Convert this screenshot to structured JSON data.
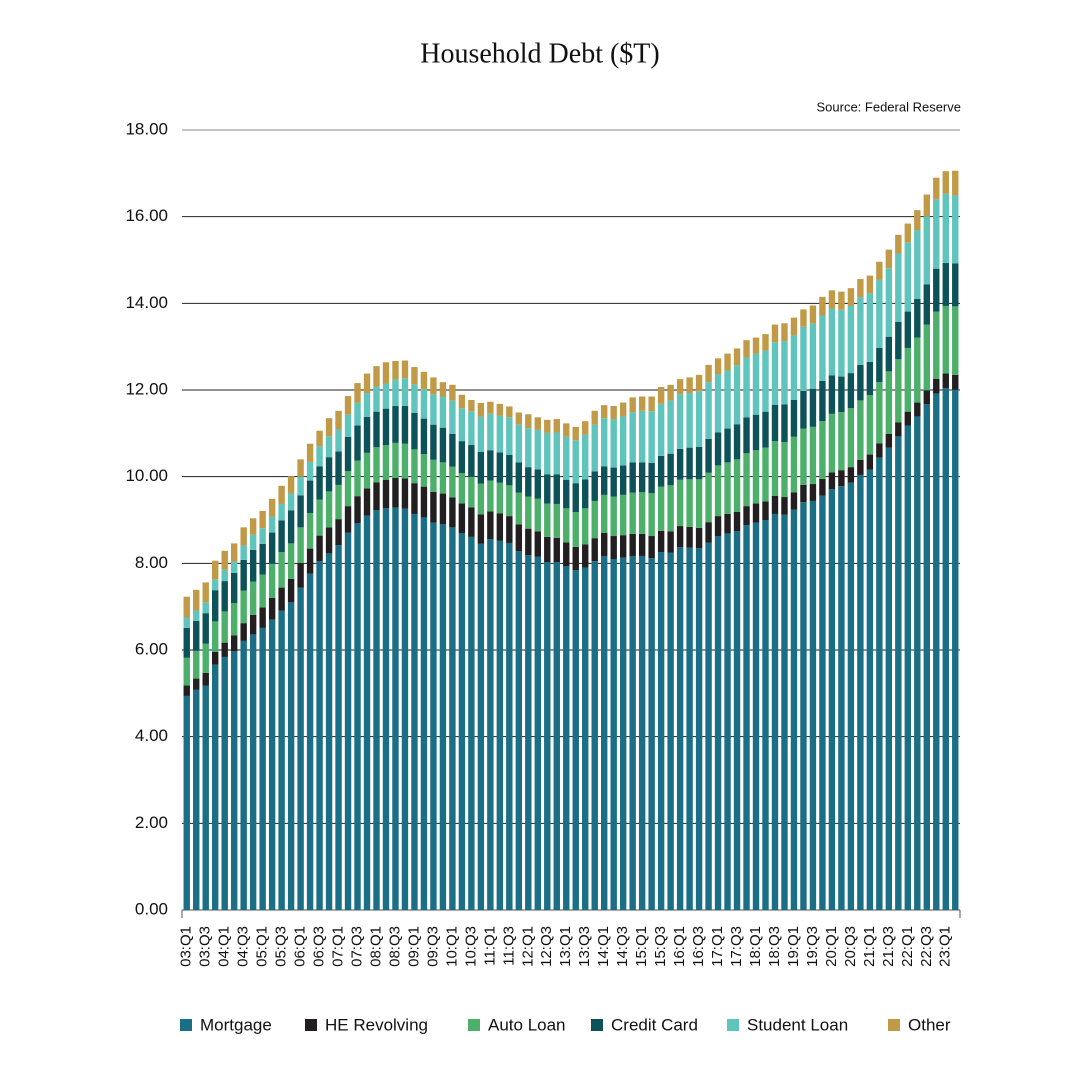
{
  "chart_data": {
    "type": "stacked-bar",
    "title": "Household Debt ($T)",
    "source": "Source: Federal Reserve",
    "categories": [
      "03:Q1",
      null,
      "03:Q3",
      null,
      "04:Q1",
      null,
      "04:Q3",
      null,
      "05:Q1",
      null,
      "05:Q3",
      null,
      "06:Q1",
      null,
      "06:Q3",
      null,
      "07:Q1",
      null,
      "07:Q3",
      null,
      "08:Q1",
      null,
      "08:Q3",
      null,
      "09:Q1",
      null,
      "09:Q3",
      null,
      "10:Q1",
      null,
      "10:Q3",
      null,
      "11:Q1",
      null,
      "11:Q3",
      null,
      "12:Q1",
      null,
      "12:Q3",
      null,
      "13:Q1",
      null,
      "13:Q3",
      null,
      "14:Q1",
      null,
      "14:Q3",
      null,
      "15:Q1",
      null,
      "15:Q3",
      null,
      "16:Q1",
      null,
      "16:Q3",
      null,
      "17:Q1",
      null,
      "17:Q3",
      null,
      "18:Q1",
      null,
      "18:Q3",
      null,
      "19:Q1",
      null,
      "19:Q3",
      null,
      "20:Q1",
      null,
      "20:Q3",
      null,
      "21:Q1",
      null,
      "21:Q3",
      null,
      "22:Q1",
      null,
      "22:Q3",
      null,
      "23:Q1",
      null
    ],
    "series": [
      {
        "name": "Mortgage",
        "color": "#1a6e85",
        "values": [
          4.94,
          5.08,
          5.18,
          5.66,
          5.84,
          5.97,
          6.21,
          6.36,
          6.51,
          6.7,
          6.91,
          7.1,
          7.44,
          7.76,
          8.05,
          8.23,
          8.42,
          8.71,
          8.93,
          9.1,
          9.23,
          9.27,
          9.29,
          9.26,
          9.14,
          9.06,
          8.94,
          8.9,
          8.83,
          8.7,
          8.61,
          8.45,
          8.56,
          8.52,
          8.47,
          8.28,
          8.19,
          8.15,
          8.03,
          8.03,
          7.93,
          7.84,
          7.9,
          8.05,
          8.17,
          8.1,
          8.13,
          8.17,
          8.17,
          8.12,
          8.26,
          8.25,
          8.37,
          8.36,
          8.35,
          8.48,
          8.63,
          8.69,
          8.74,
          8.88,
          8.94,
          9.0,
          9.14,
          9.12,
          9.24,
          9.41,
          9.44,
          9.56,
          9.71,
          9.78,
          9.86,
          10.04,
          10.16,
          10.44,
          10.67,
          10.93,
          11.18,
          11.39,
          11.67,
          11.92,
          12.04,
          12.01
        ]
      },
      {
        "name": "HE Revolving",
        "color": "#231f20",
        "values": [
          0.24,
          0.26,
          0.29,
          0.3,
          0.33,
          0.37,
          0.41,
          0.45,
          0.47,
          0.5,
          0.53,
          0.54,
          0.57,
          0.58,
          0.59,
          0.6,
          0.6,
          0.61,
          0.62,
          0.63,
          0.64,
          0.66,
          0.68,
          0.7,
          0.71,
          0.71,
          0.71,
          0.71,
          0.69,
          0.68,
          0.68,
          0.68,
          0.64,
          0.63,
          0.62,
          0.62,
          0.61,
          0.59,
          0.58,
          0.56,
          0.55,
          0.54,
          0.54,
          0.53,
          0.53,
          0.53,
          0.52,
          0.51,
          0.51,
          0.51,
          0.49,
          0.49,
          0.49,
          0.48,
          0.47,
          0.47,
          0.46,
          0.45,
          0.45,
          0.44,
          0.44,
          0.43,
          0.42,
          0.41,
          0.4,
          0.4,
          0.39,
          0.39,
          0.39,
          0.37,
          0.36,
          0.35,
          0.35,
          0.33,
          0.32,
          0.32,
          0.32,
          0.32,
          0.32,
          0.34,
          0.34,
          0.34
        ]
      },
      {
        "name": "Auto Loan",
        "color": "#4caf6a",
        "values": [
          0.64,
          0.64,
          0.68,
          0.7,
          0.72,
          0.74,
          0.75,
          0.77,
          0.76,
          0.79,
          0.82,
          0.82,
          0.82,
          0.82,
          0.83,
          0.83,
          0.79,
          0.81,
          0.82,
          0.82,
          0.81,
          0.8,
          0.81,
          0.8,
          0.78,
          0.75,
          0.74,
          0.72,
          0.71,
          0.7,
          0.71,
          0.71,
          0.71,
          0.71,
          0.71,
          0.73,
          0.74,
          0.75,
          0.77,
          0.78,
          0.79,
          0.8,
          0.83,
          0.86,
          0.88,
          0.91,
          0.93,
          0.95,
          0.96,
          0.99,
          1.02,
          1.06,
          1.07,
          1.1,
          1.12,
          1.14,
          1.17,
          1.19,
          1.21,
          1.22,
          1.23,
          1.24,
          1.26,
          1.27,
          1.28,
          1.3,
          1.32,
          1.33,
          1.35,
          1.34,
          1.36,
          1.37,
          1.37,
          1.41,
          1.44,
          1.46,
          1.47,
          1.5,
          1.52,
          1.55,
          1.56,
          1.58
        ]
      },
      {
        "name": "Credit Card",
        "color": "#0c5258",
        "values": [
          0.69,
          0.69,
          0.7,
          0.72,
          0.7,
          0.7,
          0.71,
          0.73,
          0.71,
          0.72,
          0.73,
          0.76,
          0.74,
          0.75,
          0.77,
          0.79,
          0.77,
          0.79,
          0.81,
          0.83,
          0.82,
          0.84,
          0.85,
          0.87,
          0.84,
          0.82,
          0.81,
          0.8,
          0.76,
          0.74,
          0.73,
          0.73,
          0.7,
          0.7,
          0.7,
          0.7,
          0.68,
          0.68,
          0.67,
          0.68,
          0.66,
          0.67,
          0.67,
          0.68,
          0.66,
          0.67,
          0.68,
          0.7,
          0.69,
          0.7,
          0.71,
          0.73,
          0.71,
          0.73,
          0.75,
          0.78,
          0.76,
          0.78,
          0.81,
          0.83,
          0.82,
          0.83,
          0.84,
          0.87,
          0.85,
          0.87,
          0.88,
          0.93,
          0.89,
          0.82,
          0.81,
          0.82,
          0.77,
          0.79,
          0.8,
          0.86,
          0.84,
          0.89,
          0.93,
          0.99,
          0.99,
          0.99
        ]
      },
      {
        "name": "Student Loan",
        "color": "#5ec4bc",
        "values": [
          0.24,
          0.24,
          0.25,
          0.25,
          0.26,
          0.26,
          0.33,
          0.35,
          0.36,
          0.37,
          0.38,
          0.39,
          0.43,
          0.43,
          0.46,
          0.48,
          0.51,
          0.51,
          0.53,
          0.55,
          0.58,
          0.58,
          0.61,
          0.64,
          0.66,
          0.68,
          0.7,
          0.72,
          0.76,
          0.76,
          0.78,
          0.81,
          0.84,
          0.85,
          0.87,
          0.87,
          0.9,
          0.91,
          0.96,
          0.97,
          0.99,
          0.99,
          1.03,
          1.08,
          1.11,
          1.12,
          1.13,
          1.16,
          1.19,
          1.19,
          1.2,
          1.23,
          1.26,
          1.26,
          1.28,
          1.31,
          1.34,
          1.34,
          1.36,
          1.38,
          1.41,
          1.41,
          1.44,
          1.46,
          1.49,
          1.48,
          1.5,
          1.51,
          1.54,
          1.54,
          1.55,
          1.56,
          1.58,
          1.57,
          1.58,
          1.58,
          1.59,
          1.59,
          1.57,
          1.6,
          1.6,
          1.57
        ]
      },
      {
        "name": "Other",
        "color": "#c19a48",
        "values": [
          0.48,
          0.48,
          0.46,
          0.43,
          0.44,
          0.42,
          0.42,
          0.38,
          0.4,
          0.41,
          0.42,
          0.4,
          0.4,
          0.42,
          0.36,
          0.42,
          0.43,
          0.43,
          0.45,
          0.45,
          0.47,
          0.49,
          0.43,
          0.41,
          0.4,
          0.4,
          0.39,
          0.33,
          0.37,
          0.31,
          0.26,
          0.32,
          0.28,
          0.27,
          0.25,
          0.28,
          0.32,
          0.29,
          0.3,
          0.31,
          0.31,
          0.31,
          0.31,
          0.32,
          0.3,
          0.3,
          0.32,
          0.34,
          0.33,
          0.34,
          0.39,
          0.36,
          0.35,
          0.36,
          0.38,
          0.4,
          0.37,
          0.39,
          0.39,
          0.4,
          0.37,
          0.38,
          0.41,
          0.41,
          0.41,
          0.4,
          0.42,
          0.43,
          0.42,
          0.42,
          0.41,
          0.42,
          0.41,
          0.42,
          0.43,
          0.43,
          0.44,
          0.46,
          0.5,
          0.5,
          0.52,
          0.57
        ]
      }
    ],
    "ylim": [
      0,
      18
    ],
    "yticks": [
      {
        "value": 0,
        "label": "0.00"
      },
      {
        "value": 2,
        "label": "2.00"
      },
      {
        "value": 4,
        "label": "4.00"
      },
      {
        "value": 6,
        "label": "6.00"
      },
      {
        "value": 8,
        "label": "8.00"
      },
      {
        "value": 10,
        "label": "10.00"
      },
      {
        "value": 12,
        "label": "12.00"
      },
      {
        "value": 14,
        "label": "14.00"
      },
      {
        "value": 16,
        "label": "16.00"
      },
      {
        "value": 18,
        "label": "18.00"
      }
    ],
    "grid": true,
    "legend": "bottom"
  }
}
